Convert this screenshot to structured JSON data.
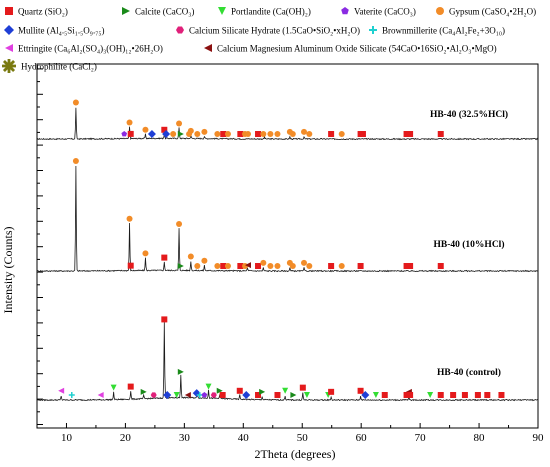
{
  "chart_data": {
    "type": "line",
    "xlabel": "2Theta (degrees)",
    "ylabel": "Intensity (Counts)",
    "xlim": [
      5,
      90
    ],
    "xticks": [
      10,
      20,
      30,
      40,
      50,
      60,
      70,
      80,
      90
    ],
    "y_tick_labels_shown": false,
    "grid": false,
    "legend_placement": "top",
    "legend": [
      {
        "id": "quartz",
        "label": "Quartz (SiO₂)",
        "marker": "square",
        "color": "#e41a1c"
      },
      {
        "id": "calcite",
        "label": "Calcite (CaCO₃)",
        "marker": "triangle-right",
        "color": "#1a8a1a"
      },
      {
        "id": "portlandite",
        "label": "Portlandite (Ca(OH)₂)",
        "marker": "triangle-down",
        "color": "#33dd33"
      },
      {
        "id": "vaterite",
        "label": "Vaterite (CaCO₃)",
        "marker": "pentagon",
        "color": "#8a2be2"
      },
      {
        "id": "gypsum",
        "label": "Gypsum (CaSO₄•2H₂O)",
        "marker": "circle",
        "color": "#f28c28"
      },
      {
        "id": "mullite",
        "label": "Mullite (Al₄.₅Si₁.₅O₉.₇₅)",
        "marker": "diamond",
        "color": "#1f3fd6"
      },
      {
        "id": "csh",
        "label": "Calcium Silicate Hydrate (1.5CaO•SiO₂•xH₂O)",
        "marker": "hexagon",
        "color": "#e0207a"
      },
      {
        "id": "brownmillerite",
        "label": "Brownmillerite (Ca₄Al₂Fe₂+3O₁₀)",
        "marker": "cross",
        "color": "#20d0d0"
      },
      {
        "id": "ettringite",
        "label": "Ettringite (Ca₆Al₂(SO₄)₃(OH)₁₂•26H₂O)",
        "marker": "triangle-left",
        "color": "#e040e0"
      },
      {
        "id": "cmas",
        "label": "Calcium Magnesium Aluminum Oxide Silicate (54CaO•16SiO₂•Al₂O₃•MgO)",
        "marker": "triangle-left",
        "color": "#8b1010"
      },
      {
        "id": "hydrophilite",
        "label": "Hydrophilite (CaCl₂)",
        "marker": "asterisk",
        "color": "#7a7a10"
      }
    ],
    "series": [
      {
        "name": "HB-40 (32.5%HCl)",
        "baseline": 0,
        "peaks": [
          {
            "x": 11.6,
            "h": 30,
            "phase": "gypsum"
          },
          {
            "x": 20.7,
            "h": 11,
            "phase": "gypsum"
          },
          {
            "x": 23.4,
            "h": 4,
            "phase": "gypsum"
          },
          {
            "x": 26.6,
            "h": 4,
            "phase": "quartz"
          },
          {
            "x": 29.1,
            "h": 10,
            "phase": "gypsum"
          },
          {
            "x": 31.1,
            "h": 3,
            "phase": "gypsum"
          },
          {
            "x": 33.4,
            "h": 2,
            "phase": "gypsum"
          },
          {
            "x": 43.6,
            "h": 2,
            "phase": "gypsum"
          },
          {
            "x": 47.9,
            "h": 2,
            "phase": "gypsum"
          },
          {
            "x": 50.3,
            "h": 2,
            "phase": "quartz"
          }
        ],
        "markers": [
          {
            "x": 11.6,
            "phase": "gypsum"
          },
          {
            "x": 19.8,
            "phase": "vaterite"
          },
          {
            "x": 20.7,
            "phase": "gypsum"
          },
          {
            "x": 20.9,
            "phase": "quartz"
          },
          {
            "x": 23.4,
            "phase": "gypsum"
          },
          {
            "x": 24.5,
            "phase": "mullite"
          },
          {
            "x": 26.6,
            "phase": "quartz"
          },
          {
            "x": 26.9,
            "phase": "mullite"
          },
          {
            "x": 28.1,
            "phase": "gypsum"
          },
          {
            "x": 29.1,
            "phase": "gypsum"
          },
          {
            "x": 29.4,
            "phase": "calcite"
          },
          {
            "x": 30.8,
            "phase": "gypsum"
          },
          {
            "x": 31.1,
            "phase": "gypsum"
          },
          {
            "x": 32.2,
            "phase": "gypsum"
          },
          {
            "x": 33.4,
            "phase": "gypsum"
          },
          {
            "x": 35.6,
            "phase": "gypsum"
          },
          {
            "x": 36.6,
            "phase": "quartz"
          },
          {
            "x": 37.4,
            "phase": "gypsum"
          },
          {
            "x": 39.5,
            "phase": "quartz"
          },
          {
            "x": 40.3,
            "phase": "gypsum"
          },
          {
            "x": 40.8,
            "phase": "gypsum"
          },
          {
            "x": 42.5,
            "phase": "quartz"
          },
          {
            "x": 43.4,
            "phase": "gypsum"
          },
          {
            "x": 44.6,
            "phase": "gypsum"
          },
          {
            "x": 45.8,
            "phase": "gypsum"
          },
          {
            "x": 47.9,
            "phase": "gypsum"
          },
          {
            "x": 48.4,
            "phase": "gypsum"
          },
          {
            "x": 50.3,
            "phase": "gypsum"
          },
          {
            "x": 51.2,
            "phase": "gypsum"
          },
          {
            "x": 54.9,
            "phase": "quartz"
          },
          {
            "x": 56.7,
            "phase": "gypsum"
          },
          {
            "x": 59.9,
            "phase": "quartz"
          },
          {
            "x": 60.3,
            "phase": "quartz"
          },
          {
            "x": 67.7,
            "phase": "quartz"
          },
          {
            "x": 68.1,
            "phase": "quartz"
          },
          {
            "x": 68.3,
            "phase": "quartz"
          },
          {
            "x": 73.5,
            "phase": "quartz"
          }
        ]
      },
      {
        "name": "HB-40 (10%HCl)",
        "baseline": 0,
        "peaks": [
          {
            "x": 11.6,
            "h": 100,
            "phase": "gypsum"
          },
          {
            "x": 20.7,
            "h": 45,
            "phase": "gypsum"
          },
          {
            "x": 23.4,
            "h": 12,
            "phase": "gypsum"
          },
          {
            "x": 26.6,
            "h": 8,
            "phase": "quartz"
          },
          {
            "x": 29.1,
            "h": 40,
            "phase": "gypsum"
          },
          {
            "x": 31.1,
            "h": 9,
            "phase": "gypsum"
          },
          {
            "x": 33.4,
            "h": 5,
            "phase": "gypsum"
          },
          {
            "x": 40.7,
            "h": 3,
            "phase": "gypsum"
          },
          {
            "x": 43.4,
            "h": 3,
            "phase": "gypsum"
          },
          {
            "x": 47.9,
            "h": 3,
            "phase": "gypsum"
          },
          {
            "x": 50.3,
            "h": 3,
            "phase": "gypsum"
          }
        ],
        "markers": [
          {
            "x": 11.6,
            "phase": "gypsum"
          },
          {
            "x": 20.7,
            "phase": "gypsum"
          },
          {
            "x": 20.9,
            "phase": "quartz"
          },
          {
            "x": 23.4,
            "phase": "gypsum"
          },
          {
            "x": 26.6,
            "phase": "quartz"
          },
          {
            "x": 29.1,
            "phase": "gypsum"
          },
          {
            "x": 29.4,
            "phase": "calcite"
          },
          {
            "x": 31.1,
            "phase": "gypsum"
          },
          {
            "x": 32.2,
            "phase": "gypsum"
          },
          {
            "x": 33.4,
            "phase": "gypsum"
          },
          {
            "x": 35.6,
            "phase": "gypsum"
          },
          {
            "x": 36.6,
            "phase": "quartz"
          },
          {
            "x": 37.4,
            "phase": "gypsum"
          },
          {
            "x": 39.5,
            "phase": "quartz"
          },
          {
            "x": 40.3,
            "phase": "gypsum"
          },
          {
            "x": 40.8,
            "phase": "cmas"
          },
          {
            "x": 42.5,
            "phase": "quartz"
          },
          {
            "x": 43.4,
            "phase": "gypsum"
          },
          {
            "x": 44.6,
            "phase": "gypsum"
          },
          {
            "x": 45.8,
            "phase": "gypsum"
          },
          {
            "x": 47.9,
            "phase": "gypsum"
          },
          {
            "x": 48.4,
            "phase": "gypsum"
          },
          {
            "x": 50.3,
            "phase": "gypsum"
          },
          {
            "x": 51.2,
            "phase": "gypsum"
          },
          {
            "x": 54.9,
            "phase": "quartz"
          },
          {
            "x": 56.7,
            "phase": "gypsum"
          },
          {
            "x": 59.9,
            "phase": "quartz"
          },
          {
            "x": 67.7,
            "phase": "quartz"
          },
          {
            "x": 68.1,
            "phase": "quartz"
          },
          {
            "x": 68.3,
            "phase": "quartz"
          },
          {
            "x": 73.5,
            "phase": "quartz"
          }
        ]
      },
      {
        "name": "HB-40 (control)",
        "baseline": 0,
        "peaks": [
          {
            "x": 9.1,
            "h": 4,
            "phase": "ettringite"
          },
          {
            "x": 18.0,
            "h": 7,
            "phase": "portlandite"
          },
          {
            "x": 20.9,
            "h": 8,
            "phase": "quartz"
          },
          {
            "x": 23.1,
            "h": 3,
            "phase": "calcite"
          },
          {
            "x": 26.6,
            "h": 72,
            "phase": "quartz"
          },
          {
            "x": 29.4,
            "h": 22,
            "phase": "calcite"
          },
          {
            "x": 32.2,
            "h": 6,
            "phase": "mullite"
          },
          {
            "x": 34.1,
            "h": 8,
            "phase": "portlandite"
          },
          {
            "x": 36.0,
            "h": 4,
            "phase": "calcite"
          },
          {
            "x": 39.4,
            "h": 4,
            "phase": "quartz"
          },
          {
            "x": 43.2,
            "h": 3,
            "phase": "calcite"
          },
          {
            "x": 47.1,
            "h": 4,
            "phase": "portlandite"
          },
          {
            "x": 50.1,
            "h": 7,
            "phase": "quartz"
          },
          {
            "x": 54.9,
            "h": 3,
            "phase": "quartz"
          },
          {
            "x": 59.9,
            "h": 4,
            "phase": "quartz"
          },
          {
            "x": 68.1,
            "h": 3,
            "phase": "quartz"
          }
        ],
        "markers": [
          {
            "x": 9.1,
            "phase": "ettringite"
          },
          {
            "x": 10.9,
            "phase": "brownmillerite"
          },
          {
            "x": 15.8,
            "phase": "ettringite"
          },
          {
            "x": 18.0,
            "phase": "portlandite"
          },
          {
            "x": 20.9,
            "phase": "quartz"
          },
          {
            "x": 23.1,
            "phase": "calcite"
          },
          {
            "x": 24.8,
            "phase": "csh"
          },
          {
            "x": 26.6,
            "phase": "quartz"
          },
          {
            "x": 27.1,
            "phase": "mullite"
          },
          {
            "x": 28.7,
            "phase": "portlandite"
          },
          {
            "x": 29.4,
            "phase": "calcite"
          },
          {
            "x": 30.6,
            "phase": "cmas"
          },
          {
            "x": 32.1,
            "phase": "mullite"
          },
          {
            "x": 32.6,
            "phase": "brownmillerite"
          },
          {
            "x": 33.4,
            "phase": "vaterite"
          },
          {
            "x": 34.1,
            "phase": "portlandite"
          },
          {
            "x": 35.0,
            "phase": "csh"
          },
          {
            "x": 36.0,
            "phase": "calcite"
          },
          {
            "x": 36.5,
            "phase": "quartz"
          },
          {
            "x": 39.4,
            "phase": "quartz"
          },
          {
            "x": 40.5,
            "phase": "mullite"
          },
          {
            "x": 42.5,
            "phase": "quartz"
          },
          {
            "x": 43.2,
            "phase": "calcite"
          },
          {
            "x": 45.8,
            "phase": "quartz"
          },
          {
            "x": 47.1,
            "phase": "portlandite"
          },
          {
            "x": 48.5,
            "phase": "calcite"
          },
          {
            "x": 50.1,
            "phase": "quartz"
          },
          {
            "x": 50.8,
            "phase": "portlandite"
          },
          {
            "x": 54.4,
            "phase": "portlandite"
          },
          {
            "x": 54.9,
            "phase": "quartz"
          },
          {
            "x": 59.9,
            "phase": "quartz"
          },
          {
            "x": 60.7,
            "phase": "mullite"
          },
          {
            "x": 62.5,
            "phase": "portlandite"
          },
          {
            "x": 64.0,
            "phase": "quartz"
          },
          {
            "x": 67.7,
            "phase": "quartz"
          },
          {
            "x": 68.1,
            "phase": "cmas"
          },
          {
            "x": 68.3,
            "phase": "quartz"
          },
          {
            "x": 71.7,
            "phase": "portlandite"
          },
          {
            "x": 73.5,
            "phase": "quartz"
          },
          {
            "x": 75.6,
            "phase": "quartz"
          },
          {
            "x": 77.6,
            "phase": "quartz"
          },
          {
            "x": 79.8,
            "phase": "quartz"
          },
          {
            "x": 81.4,
            "phase": "quartz"
          },
          {
            "x": 83.8,
            "phase": "quartz"
          }
        ]
      }
    ]
  }
}
